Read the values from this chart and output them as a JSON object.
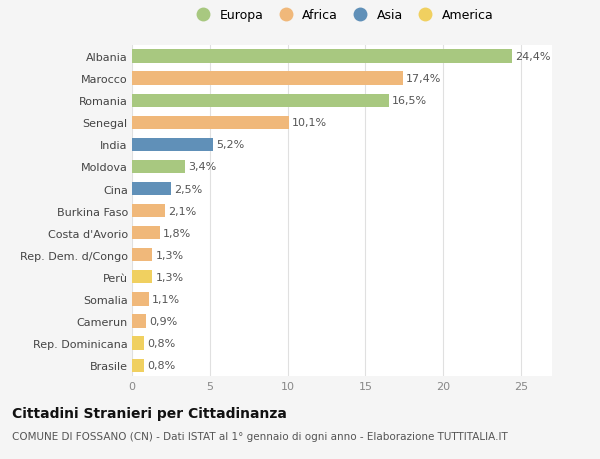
{
  "countries": [
    "Albania",
    "Marocco",
    "Romania",
    "Senegal",
    "India",
    "Moldova",
    "Cina",
    "Burkina Faso",
    "Costa d'Avorio",
    "Rep. Dem. d/Congo",
    "Perù",
    "Somalia",
    "Camerun",
    "Rep. Dominicana",
    "Brasile"
  ],
  "values": [
    24.4,
    17.4,
    16.5,
    10.1,
    5.2,
    3.4,
    2.5,
    2.1,
    1.8,
    1.3,
    1.3,
    1.1,
    0.9,
    0.8,
    0.8
  ],
  "labels": [
    "24,4%",
    "17,4%",
    "16,5%",
    "10,1%",
    "5,2%",
    "3,4%",
    "2,5%",
    "2,1%",
    "1,8%",
    "1,3%",
    "1,3%",
    "1,1%",
    "0,9%",
    "0,8%",
    "0,8%"
  ],
  "continents": [
    "Europa",
    "Africa",
    "Europa",
    "Africa",
    "Asia",
    "Europa",
    "Asia",
    "Africa",
    "Africa",
    "Africa",
    "America",
    "Africa",
    "Africa",
    "America",
    "America"
  ],
  "continent_colors": {
    "Europa": "#a8c880",
    "Africa": "#f0b87a",
    "Asia": "#6090b8",
    "America": "#f0d060"
  },
  "legend_order": [
    "Europa",
    "Africa",
    "Asia",
    "America"
  ],
  "xlim": [
    0,
    27
  ],
  "xticks": [
    0,
    5,
    10,
    15,
    20,
    25
  ],
  "title": "Cittadini Stranieri per Cittadinanza",
  "subtitle": "COMUNE DI FOSSANO (CN) - Dati ISTAT al 1° gennaio di ogni anno - Elaborazione TUTTITALIA.IT",
  "bg_color": "#f5f5f5",
  "plot_bg_color": "#ffffff",
  "grid_color": "#e0e0e0",
  "title_fontsize": 10,
  "subtitle_fontsize": 7.5,
  "label_fontsize": 8,
  "tick_fontsize": 8,
  "legend_fontsize": 9
}
